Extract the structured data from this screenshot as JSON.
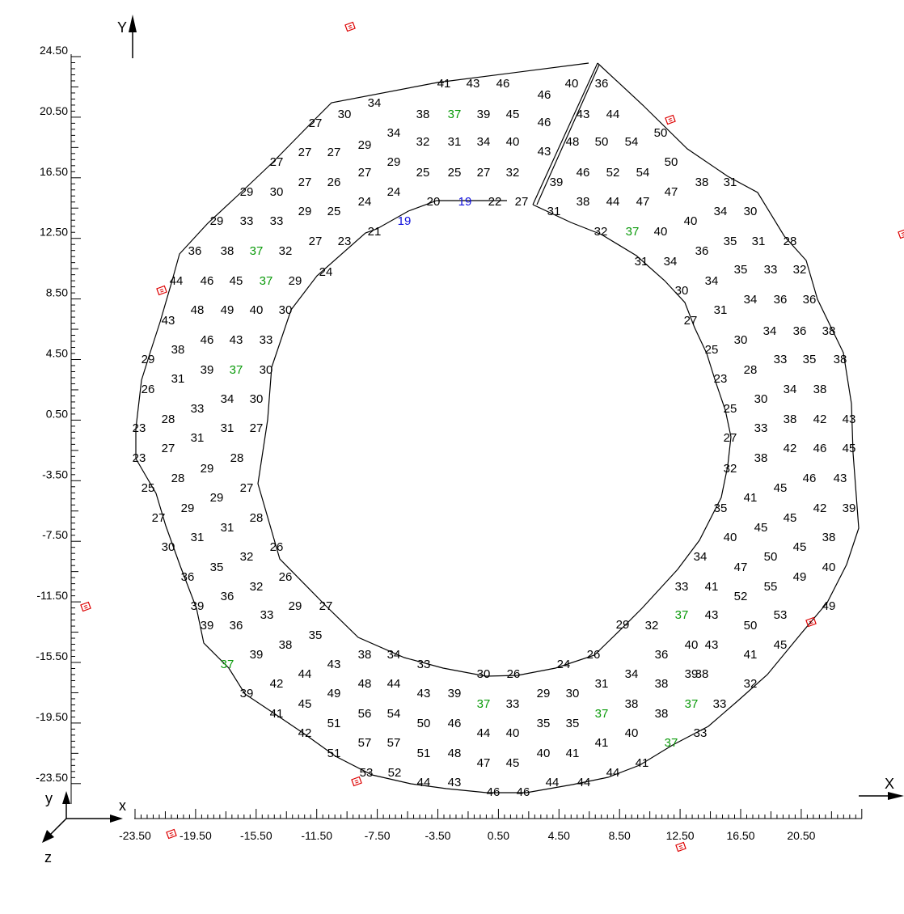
{
  "axes": {
    "y_label": "Y",
    "x_label": "X",
    "triad": {
      "y": "y",
      "x": "x",
      "z": "z"
    },
    "y_ticks": [
      "24.50",
      "20.50",
      "16.50",
      "12.50",
      "8.50",
      "4.50",
      "0.50",
      "-3.50",
      "-7.50",
      "-11.50",
      "-15.50",
      "-19.50",
      "-23.50"
    ],
    "x_ticks": [
      "-23.50",
      "-19.50",
      "-15.50",
      "-11.50",
      "-7.50",
      "-3.50",
      "0.50",
      "4.50",
      "8.50",
      "12.50",
      "16.50",
      "20.50"
    ]
  },
  "colors": {
    "default": "#000000",
    "green": "#0a9a0a",
    "blue": "#1010dd",
    "marker": "#dd0000"
  },
  "labels": [
    {
      "t": "41",
      "x": 549,
      "y": 104
    },
    {
      "t": "43",
      "x": 585,
      "y": 104
    },
    {
      "t": "46",
      "x": 622,
      "y": 104
    },
    {
      "t": "46",
      "x": 673,
      "y": 118
    },
    {
      "t": "40",
      "x": 707,
      "y": 104
    },
    {
      "t": "36",
      "x": 744,
      "y": 104
    },
    {
      "t": "34",
      "x": 463,
      "y": 128
    },
    {
      "t": "30",
      "x": 426,
      "y": 142
    },
    {
      "t": "38",
      "x": 523,
      "y": 142
    },
    {
      "t": "37",
      "x": 562,
      "y": 142,
      "c": "green"
    },
    {
      "t": "39",
      "x": 598,
      "y": 142
    },
    {
      "t": "45",
      "x": 634,
      "y": 142
    },
    {
      "t": "46",
      "x": 673,
      "y": 152
    },
    {
      "t": "43",
      "x": 721,
      "y": 142
    },
    {
      "t": "44",
      "x": 758,
      "y": 142
    },
    {
      "t": "27",
      "x": 390,
      "y": 153
    },
    {
      "t": "34",
      "x": 487,
      "y": 165
    },
    {
      "t": "50",
      "x": 817,
      "y": 165
    },
    {
      "t": "27",
      "x": 377,
      "y": 189
    },
    {
      "t": "27",
      "x": 413,
      "y": 189
    },
    {
      "t": "29",
      "x": 451,
      "y": 180
    },
    {
      "t": "32",
      "x": 523,
      "y": 176
    },
    {
      "t": "31",
      "x": 562,
      "y": 176
    },
    {
      "t": "34",
      "x": 598,
      "y": 176
    },
    {
      "t": "40",
      "x": 634,
      "y": 176
    },
    {
      "t": "43",
      "x": 673,
      "y": 188
    },
    {
      "t": "48",
      "x": 708,
      "y": 176
    },
    {
      "t": "50",
      "x": 744,
      "y": 176
    },
    {
      "t": "54",
      "x": 781,
      "y": 176
    },
    {
      "t": "27",
      "x": 342,
      "y": 201
    },
    {
      "t": "29",
      "x": 487,
      "y": 201
    },
    {
      "t": "50",
      "x": 830,
      "y": 201
    },
    {
      "t": "27",
      "x": 377,
      "y": 226
    },
    {
      "t": "26",
      "x": 413,
      "y": 226
    },
    {
      "t": "27",
      "x": 451,
      "y": 214
    },
    {
      "t": "25",
      "x": 523,
      "y": 214
    },
    {
      "t": "25",
      "x": 562,
      "y": 214
    },
    {
      "t": "27",
      "x": 598,
      "y": 214
    },
    {
      "t": "32",
      "x": 634,
      "y": 214
    },
    {
      "t": "39",
      "x": 688,
      "y": 226
    },
    {
      "t": "46",
      "x": 721,
      "y": 214
    },
    {
      "t": "52",
      "x": 758,
      "y": 214
    },
    {
      "t": "54",
      "x": 795,
      "y": 214
    },
    {
      "t": "29",
      "x": 305,
      "y": 238
    },
    {
      "t": "30",
      "x": 342,
      "y": 238
    },
    {
      "t": "24",
      "x": 487,
      "y": 238
    },
    {
      "t": "47",
      "x": 830,
      "y": 238
    },
    {
      "t": "38",
      "x": 868,
      "y": 226
    },
    {
      "t": "31",
      "x": 903,
      "y": 226
    },
    {
      "t": "24",
      "x": 451,
      "y": 250
    },
    {
      "t": "20",
      "x": 536,
      "y": 250
    },
    {
      "t": "19",
      "x": 575,
      "y": 250,
      "c": "blue"
    },
    {
      "t": "22",
      "x": 612,
      "y": 250
    },
    {
      "t": "27",
      "x": 645,
      "y": 250
    },
    {
      "t": "38",
      "x": 721,
      "y": 250
    },
    {
      "t": "44",
      "x": 758,
      "y": 250
    },
    {
      "t": "47",
      "x": 795,
      "y": 250
    },
    {
      "t": "29",
      "x": 377,
      "y": 262
    },
    {
      "t": "25",
      "x": 413,
      "y": 262
    },
    {
      "t": "31",
      "x": 685,
      "y": 262
    },
    {
      "t": "34",
      "x": 891,
      "y": 262
    },
    {
      "t": "30",
      "x": 928,
      "y": 262
    },
    {
      "t": "29",
      "x": 268,
      "y": 274
    },
    {
      "t": "33",
      "x": 305,
      "y": 274
    },
    {
      "t": "33",
      "x": 342,
      "y": 274
    },
    {
      "t": "19",
      "x": 500,
      "y": 274,
      "c": "blue"
    },
    {
      "t": "40",
      "x": 854,
      "y": 274
    },
    {
      "t": "21",
      "x": 463,
      "y": 287
    },
    {
      "t": "32",
      "x": 743,
      "y": 287
    },
    {
      "t": "37",
      "x": 782,
      "y": 287,
      "c": "green"
    },
    {
      "t": "40",
      "x": 817,
      "y": 287
    },
    {
      "t": "27",
      "x": 390,
      "y": 299
    },
    {
      "t": "23",
      "x": 426,
      "y": 299
    },
    {
      "t": "35",
      "x": 903,
      "y": 299
    },
    {
      "t": "31",
      "x": 938,
      "y": 299
    },
    {
      "t": "28",
      "x": 977,
      "y": 299
    },
    {
      "t": "36",
      "x": 241,
      "y": 311
    },
    {
      "t": "38",
      "x": 281,
      "y": 311
    },
    {
      "t": "37",
      "x": 317,
      "y": 311,
      "c": "green"
    },
    {
      "t": "32",
      "x": 353,
      "y": 311
    },
    {
      "t": "36",
      "x": 868,
      "y": 311
    },
    {
      "t": "31",
      "x": 793,
      "y": 324
    },
    {
      "t": "34",
      "x": 829,
      "y": 324
    },
    {
      "t": "35",
      "x": 916,
      "y": 334
    },
    {
      "t": "33",
      "x": 953,
      "y": 334
    },
    {
      "t": "32",
      "x": 989,
      "y": 334
    },
    {
      "t": "24",
      "x": 403,
      "y": 337
    },
    {
      "t": "44",
      "x": 218,
      "y": 348
    },
    {
      "t": "46",
      "x": 256,
      "y": 348
    },
    {
      "t": "45",
      "x": 292,
      "y": 348
    },
    {
      "t": "37",
      "x": 329,
      "y": 348,
      "c": "green"
    },
    {
      "t": "29",
      "x": 365,
      "y": 348
    },
    {
      "t": "34",
      "x": 880,
      "y": 348
    },
    {
      "t": "30",
      "x": 843,
      "y": 360
    },
    {
      "t": "34",
      "x": 928,
      "y": 371
    },
    {
      "t": "36",
      "x": 965,
      "y": 371
    },
    {
      "t": "36",
      "x": 1001,
      "y": 371
    },
    {
      "t": "48",
      "x": 244,
      "y": 384
    },
    {
      "t": "49",
      "x": 281,
      "y": 384
    },
    {
      "t": "40",
      "x": 317,
      "y": 384
    },
    {
      "t": "30",
      "x": 353,
      "y": 384
    },
    {
      "t": "31",
      "x": 891,
      "y": 384
    },
    {
      "t": "43",
      "x": 208,
      "y": 397
    },
    {
      "t": "27",
      "x": 854,
      "y": 397
    },
    {
      "t": "34",
      "x": 952,
      "y": 410
    },
    {
      "t": "36",
      "x": 989,
      "y": 410
    },
    {
      "t": "38",
      "x": 1025,
      "y": 410
    },
    {
      "t": "38",
      "x": 220,
      "y": 433
    },
    {
      "t": "46",
      "x": 256,
      "y": 421
    },
    {
      "t": "43",
      "x": 292,
      "y": 421
    },
    {
      "t": "33",
      "x": 329,
      "y": 421
    },
    {
      "t": "30",
      "x": 916,
      "y": 421
    },
    {
      "t": "25",
      "x": 880,
      "y": 433
    },
    {
      "t": "29",
      "x": 183,
      "y": 445
    },
    {
      "t": "33",
      "x": 965,
      "y": 445
    },
    {
      "t": "35",
      "x": 1001,
      "y": 445
    },
    {
      "t": "38",
      "x": 1039,
      "y": 445
    },
    {
      "t": "39",
      "x": 256,
      "y": 458
    },
    {
      "t": "37",
      "x": 292,
      "y": 458,
      "c": "green"
    },
    {
      "t": "30",
      "x": 329,
      "y": 458
    },
    {
      "t": "28",
      "x": 928,
      "y": 458
    },
    {
      "t": "26",
      "x": 183,
      "y": 482
    },
    {
      "t": "31",
      "x": 220,
      "y": 469
    },
    {
      "t": "23",
      "x": 891,
      "y": 469
    },
    {
      "t": "34",
      "x": 977,
      "y": 482
    },
    {
      "t": "38",
      "x": 1014,
      "y": 482
    },
    {
      "t": "34",
      "x": 281,
      "y": 494
    },
    {
      "t": "30",
      "x": 317,
      "y": 494
    },
    {
      "t": "30",
      "x": 941,
      "y": 494
    },
    {
      "t": "33",
      "x": 244,
      "y": 506
    },
    {
      "t": "25",
      "x": 903,
      "y": 506
    },
    {
      "t": "28",
      "x": 208,
      "y": 519
    },
    {
      "t": "38",
      "x": 977,
      "y": 519
    },
    {
      "t": "42",
      "x": 1014,
      "y": 519
    },
    {
      "t": "43",
      "x": 1050,
      "y": 519
    },
    {
      "t": "31",
      "x": 281,
      "y": 530
    },
    {
      "t": "27",
      "x": 317,
      "y": 530
    },
    {
      "t": "33",
      "x": 941,
      "y": 530
    },
    {
      "t": "23",
      "x": 172,
      "y": 530
    },
    {
      "t": "31",
      "x": 244,
      "y": 542
    },
    {
      "t": "27",
      "x": 903,
      "y": 542
    },
    {
      "t": "27",
      "x": 208,
      "y": 555
    },
    {
      "t": "42",
      "x": 977,
      "y": 555
    },
    {
      "t": "46",
      "x": 1014,
      "y": 555
    },
    {
      "t": "45",
      "x": 1050,
      "y": 555
    },
    {
      "t": "23",
      "x": 172,
      "y": 567
    },
    {
      "t": "28",
      "x": 293,
      "y": 567
    },
    {
      "t": "38",
      "x": 941,
      "y": 567
    },
    {
      "t": "29",
      "x": 256,
      "y": 580
    },
    {
      "t": "32",
      "x": 903,
      "y": 580
    },
    {
      "t": "28",
      "x": 220,
      "y": 592
    },
    {
      "t": "46",
      "x": 1001,
      "y": 592
    },
    {
      "t": "43",
      "x": 1039,
      "y": 592
    },
    {
      "t": "25",
      "x": 183,
      "y": 604
    },
    {
      "t": "27",
      "x": 305,
      "y": 604
    },
    {
      "t": "45",
      "x": 965,
      "y": 604
    },
    {
      "t": "29",
      "x": 268,
      "y": 616
    },
    {
      "t": "41",
      "x": 928,
      "y": 616
    },
    {
      "t": "29",
      "x": 232,
      "y": 629
    },
    {
      "t": "35",
      "x": 891,
      "y": 629
    },
    {
      "t": "42",
      "x": 1014,
      "y": 629
    },
    {
      "t": "39",
      "x": 1050,
      "y": 629
    },
    {
      "t": "27",
      "x": 196,
      "y": 641
    },
    {
      "t": "28",
      "x": 317,
      "y": 641
    },
    {
      "t": "45",
      "x": 977,
      "y": 641
    },
    {
      "t": "31",
      "x": 281,
      "y": 653
    },
    {
      "t": "45",
      "x": 941,
      "y": 653
    },
    {
      "t": "31",
      "x": 244,
      "y": 665
    },
    {
      "t": "40",
      "x": 903,
      "y": 665
    },
    {
      "t": "38",
      "x": 1025,
      "y": 665
    },
    {
      "t": "30",
      "x": 208,
      "y": 677
    },
    {
      "t": "26",
      "x": 342,
      "y": 677
    },
    {
      "t": "45",
      "x": 989,
      "y": 677
    },
    {
      "t": "32",
      "x": 305,
      "y": 689
    },
    {
      "t": "34",
      "x": 866,
      "y": 689
    },
    {
      "t": "50",
      "x": 953,
      "y": 689
    },
    {
      "t": "35",
      "x": 268,
      "y": 702
    },
    {
      "t": "47",
      "x": 916,
      "y": 702
    },
    {
      "t": "40",
      "x": 1025,
      "y": 702
    },
    {
      "t": "36",
      "x": 232,
      "y": 714
    },
    {
      "t": "26",
      "x": 353,
      "y": 714
    },
    {
      "t": "49",
      "x": 989,
      "y": 714
    },
    {
      "t": "32",
      "x": 317,
      "y": 726
    },
    {
      "t": "33",
      "x": 843,
      "y": 726
    },
    {
      "t": "41",
      "x": 880,
      "y": 726
    },
    {
      "t": "55",
      "x": 953,
      "y": 726
    },
    {
      "t": "36",
      "x": 281,
      "y": 738
    },
    {
      "t": "52",
      "x": 916,
      "y": 738
    },
    {
      "t": "39",
      "x": 244,
      "y": 750
    },
    {
      "t": "29",
      "x": 365,
      "y": 750
    },
    {
      "t": "27",
      "x": 403,
      "y": 750
    },
    {
      "t": "49",
      "x": 1025,
      "y": 750
    },
    {
      "t": "33",
      "x": 330,
      "y": 761
    },
    {
      "t": "37",
      "x": 843,
      "y": 761,
      "c": "green"
    },
    {
      "t": "43",
      "x": 880,
      "y": 761
    },
    {
      "t": "53",
      "x": 965,
      "y": 761
    },
    {
      "t": "39",
      "x": 256,
      "y": 774
    },
    {
      "t": "32",
      "x": 806,
      "y": 774
    },
    {
      "t": "50",
      "x": 928,
      "y": 774
    },
    {
      "t": "36",
      "x": 292,
      "y": 774
    },
    {
      "t": "29",
      "x": 770,
      "y": 773
    },
    {
      "t": "38",
      "x": 353,
      "y": 798
    },
    {
      "t": "35",
      "x": 390,
      "y": 786
    },
    {
      "t": "43",
      "x": 880,
      "y": 798
    },
    {
      "t": "40",
      "x": 855,
      "y": 798
    },
    {
      "t": "45",
      "x": 965,
      "y": 798
    },
    {
      "t": "39",
      "x": 317,
      "y": 810
    },
    {
      "t": "38",
      "x": 451,
      "y": 810
    },
    {
      "t": "34",
      "x": 487,
      "y": 810
    },
    {
      "t": "26",
      "x": 734,
      "y": 810
    },
    {
      "t": "36",
      "x": 818,
      "y": 810
    },
    {
      "t": "41",
      "x": 928,
      "y": 810
    },
    {
      "t": "33",
      "x": 524,
      "y": 822
    },
    {
      "t": "43",
      "x": 413,
      "y": 822
    },
    {
      "t": "24",
      "x": 697,
      "y": 822
    },
    {
      "t": "37",
      "x": 281,
      "y": 822,
      "c": "green"
    },
    {
      "t": "44",
      "x": 377,
      "y": 834
    },
    {
      "t": "38",
      "x": 868,
      "y": 834
    },
    {
      "t": "30",
      "x": 598,
      "y": 834
    },
    {
      "t": "26",
      "x": 635,
      "y": 834
    },
    {
      "t": "34",
      "x": 781,
      "y": 834
    },
    {
      "t": "39",
      "x": 855,
      "y": 834
    },
    {
      "t": "48",
      "x": 451,
      "y": 846
    },
    {
      "t": "44",
      "x": 487,
      "y": 846
    },
    {
      "t": "42",
      "x": 342,
      "y": 846
    },
    {
      "t": "31",
      "x": 744,
      "y": 846
    },
    {
      "t": "38",
      "x": 818,
      "y": 846
    },
    {
      "t": "32",
      "x": 928,
      "y": 846
    },
    {
      "t": "43",
      "x": 524,
      "y": 858
    },
    {
      "t": "39",
      "x": 562,
      "y": 858
    },
    {
      "t": "29",
      "x": 672,
      "y": 858
    },
    {
      "t": "30",
      "x": 708,
      "y": 858
    },
    {
      "t": "49",
      "x": 413,
      "y": 858
    },
    {
      "t": "39",
      "x": 305,
      "y": 858
    },
    {
      "t": "37",
      "x": 598,
      "y": 871,
      "c": "green"
    },
    {
      "t": "33",
      "x": 634,
      "y": 871
    },
    {
      "t": "38",
      "x": 781,
      "y": 871
    },
    {
      "t": "37",
      "x": 855,
      "y": 871,
      "c": "green"
    },
    {
      "t": "33",
      "x": 890,
      "y": 871
    },
    {
      "t": "45",
      "x": 377,
      "y": 871
    },
    {
      "t": "56",
      "x": 451,
      "y": 883
    },
    {
      "t": "54",
      "x": 487,
      "y": 883
    },
    {
      "t": "37",
      "x": 744,
      "y": 883,
      "c": "green"
    },
    {
      "t": "38",
      "x": 818,
      "y": 883
    },
    {
      "t": "41",
      "x": 342,
      "y": 883
    },
    {
      "t": "50",
      "x": 524,
      "y": 895
    },
    {
      "t": "46",
      "x": 562,
      "y": 895
    },
    {
      "t": "35",
      "x": 672,
      "y": 895
    },
    {
      "t": "35",
      "x": 708,
      "y": 895
    },
    {
      "t": "51",
      "x": 413,
      "y": 895
    },
    {
      "t": "44",
      "x": 598,
      "y": 907
    },
    {
      "t": "40",
      "x": 634,
      "y": 907
    },
    {
      "t": "40",
      "x": 781,
      "y": 907
    },
    {
      "t": "33",
      "x": 866,
      "y": 907
    },
    {
      "t": "42",
      "x": 377,
      "y": 907
    },
    {
      "t": "57",
      "x": 451,
      "y": 919
    },
    {
      "t": "57",
      "x": 487,
      "y": 919
    },
    {
      "t": "41",
      "x": 744,
      "y": 919
    },
    {
      "t": "37",
      "x": 830,
      "y": 919,
      "c": "green"
    },
    {
      "t": "51",
      "x": 524,
      "y": 932
    },
    {
      "t": "48",
      "x": 562,
      "y": 932
    },
    {
      "t": "40",
      "x": 672,
      "y": 932
    },
    {
      "t": "41",
      "x": 708,
      "y": 932
    },
    {
      "t": "51",
      "x": 413,
      "y": 932
    },
    {
      "t": "47",
      "x": 598,
      "y": 944
    },
    {
      "t": "45",
      "x": 634,
      "y": 944
    },
    {
      "t": "41",
      "x": 794,
      "y": 944
    },
    {
      "t": "53",
      "x": 453,
      "y": 956
    },
    {
      "t": "52",
      "x": 488,
      "y": 956
    },
    {
      "t": "44",
      "x": 758,
      "y": 956
    },
    {
      "t": "44",
      "x": 524,
      "y": 968
    },
    {
      "t": "43",
      "x": 562,
      "y": 968
    },
    {
      "t": "44",
      "x": 683,
      "y": 968
    },
    {
      "t": "44",
      "x": 722,
      "y": 968
    },
    {
      "t": "46",
      "x": 610,
      "y": 980
    },
    {
      "t": "46",
      "x": 647,
      "y": 980
    }
  ],
  "markers": [
    {
      "x": 433,
      "y": 33
    },
    {
      "x": 829,
      "y": 148
    },
    {
      "x": 1117,
      "y": 289
    },
    {
      "x": 200,
      "y": 359
    },
    {
      "x": 106,
      "y": 750
    },
    {
      "x": 1003,
      "y": 769
    },
    {
      "x": 441,
      "y": 966
    },
    {
      "x": 212,
      "y": 1031
    },
    {
      "x": 842,
      "y": 1047
    }
  ]
}
